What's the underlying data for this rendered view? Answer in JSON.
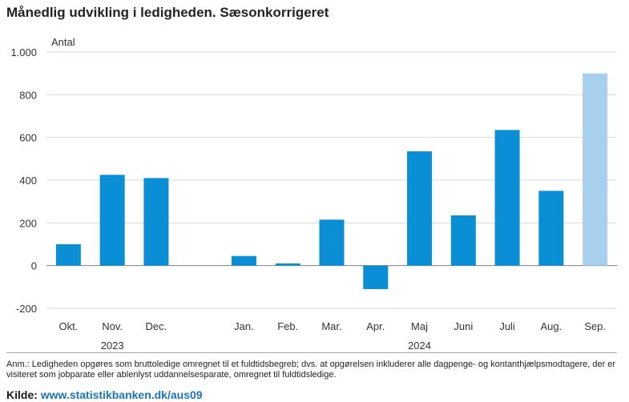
{
  "title": "Månedlig udvikling i ledigheden. Sæsonkorrigeret",
  "note": "Anm.: Ledigheden opgøres som bruttoledige omregnet til et fuldtidsbegreb; dvs. at opgørelsen inkluderer alle dagpenge- og kontanthjælpsmodtagere, der er visiteret som jobparate eller ablenlyst uddannelsesparate, omregnet til fuldtidsledige.",
  "source_label": "Kilde:",
  "source_link": "www.statistikbanken.dk/aus09",
  "colors": {
    "bar": "#0a8fd7",
    "bar_highlight": "#a8cfee",
    "grid": "#d9d9d9",
    "axis": "#808080"
  },
  "chart_data": {
    "type": "bar",
    "ylabel": "Antal",
    "ylim": [
      -200,
      1000
    ],
    "yticks": [
      -200,
      0,
      200,
      400,
      600,
      800,
      1000
    ],
    "ytick_labels": [
      "-200",
      "0",
      "200",
      "400",
      "600",
      "800",
      "1.000"
    ],
    "grid": true,
    "categories": [
      "Okt.",
      "Nov.",
      "Dec.",
      "",
      "Jan.",
      "Feb.",
      "Mar.",
      "Apr.",
      "Maj",
      "Juni",
      "Juli",
      "Aug.",
      "Sep."
    ],
    "values": [
      100,
      425,
      410,
      null,
      45,
      10,
      215,
      -110,
      535,
      235,
      635,
      350,
      900
    ],
    "highlight": [
      false,
      false,
      false,
      false,
      false,
      false,
      false,
      false,
      false,
      false,
      false,
      false,
      true
    ],
    "year_labels": [
      {
        "label": "2023",
        "from": 0,
        "to": 2
      },
      {
        "label": "2024",
        "from": 4,
        "to": 12
      }
    ]
  }
}
